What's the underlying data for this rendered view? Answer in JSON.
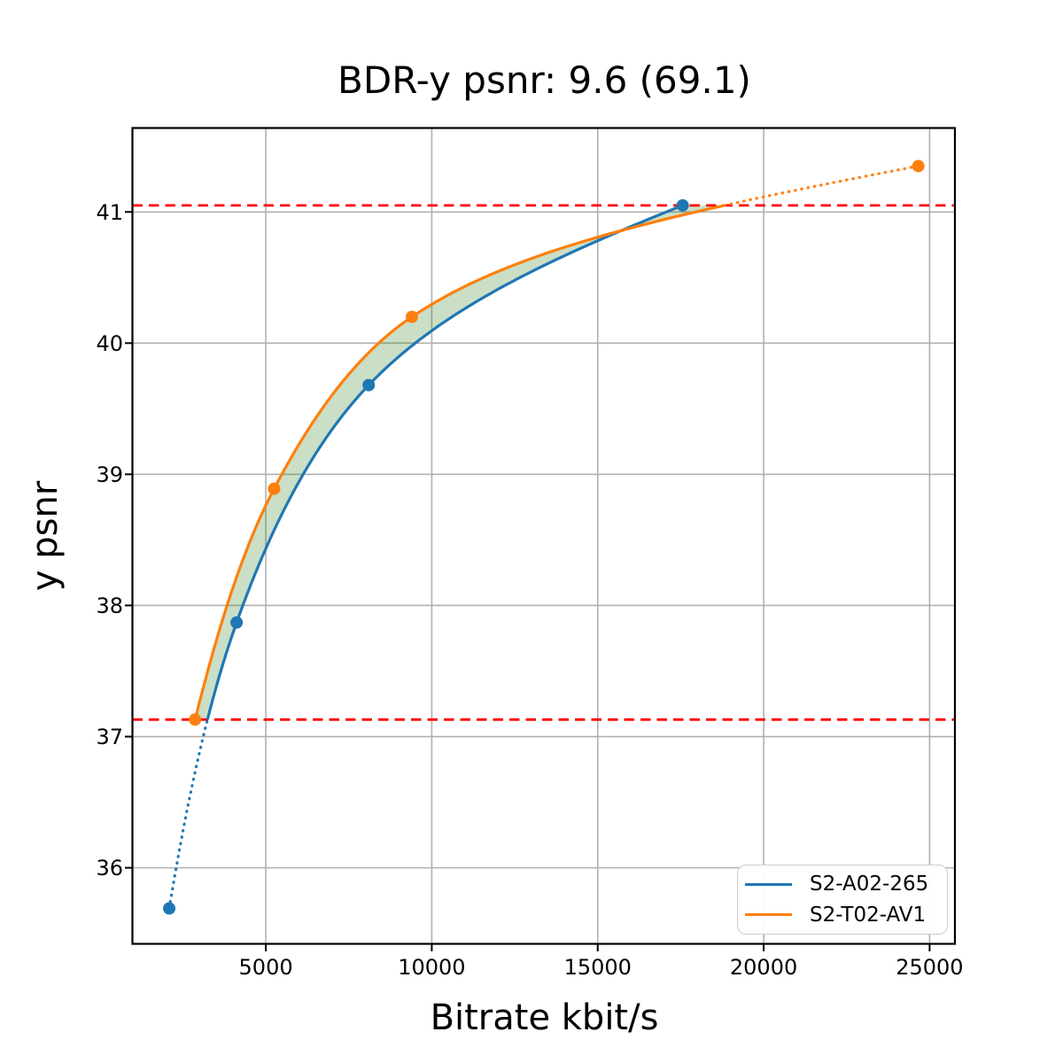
{
  "chart_data": {
    "type": "line",
    "title": "BDR-y psnr: 9.6 (69.1)",
    "xlabel": "Bitrate kbit/s",
    "ylabel": "y psnr",
    "xlim": [
      981,
      25763
    ],
    "ylim": [
      35.42,
      41.64
    ],
    "xticks": [
      5000,
      10000,
      15000,
      20000,
      25000
    ],
    "yticks": [
      36,
      37,
      38,
      39,
      40,
      41
    ],
    "grid": true,
    "grid_color": "#b0b0b0",
    "legend_position": "lower right",
    "series": [
      {
        "name": "S2-A02-265",
        "color": "#1f77b4",
        "x": [
          2090,
          4120,
          8100,
          17560
        ],
        "y": [
          35.69,
          37.87,
          39.68,
          41.05
        ]
      },
      {
        "name": "S2-T02-AV1",
        "color": "#ff7f0e",
        "x": [
          2870,
          5250,
          9400,
          24660
        ],
        "y": [
          37.13,
          38.89,
          40.2,
          41.35
        ]
      }
    ],
    "hlines": [
      {
        "y": 41.05,
        "color": "#ff0000",
        "style": "dashed"
      },
      {
        "y": 37.13,
        "color": "#ff0000",
        "style": "dashed"
      }
    ],
    "shaded_region": {
      "between": "series",
      "y_range": [
        37.13,
        41.05
      ],
      "color": "rgba(44,127,26,0.25)"
    }
  }
}
